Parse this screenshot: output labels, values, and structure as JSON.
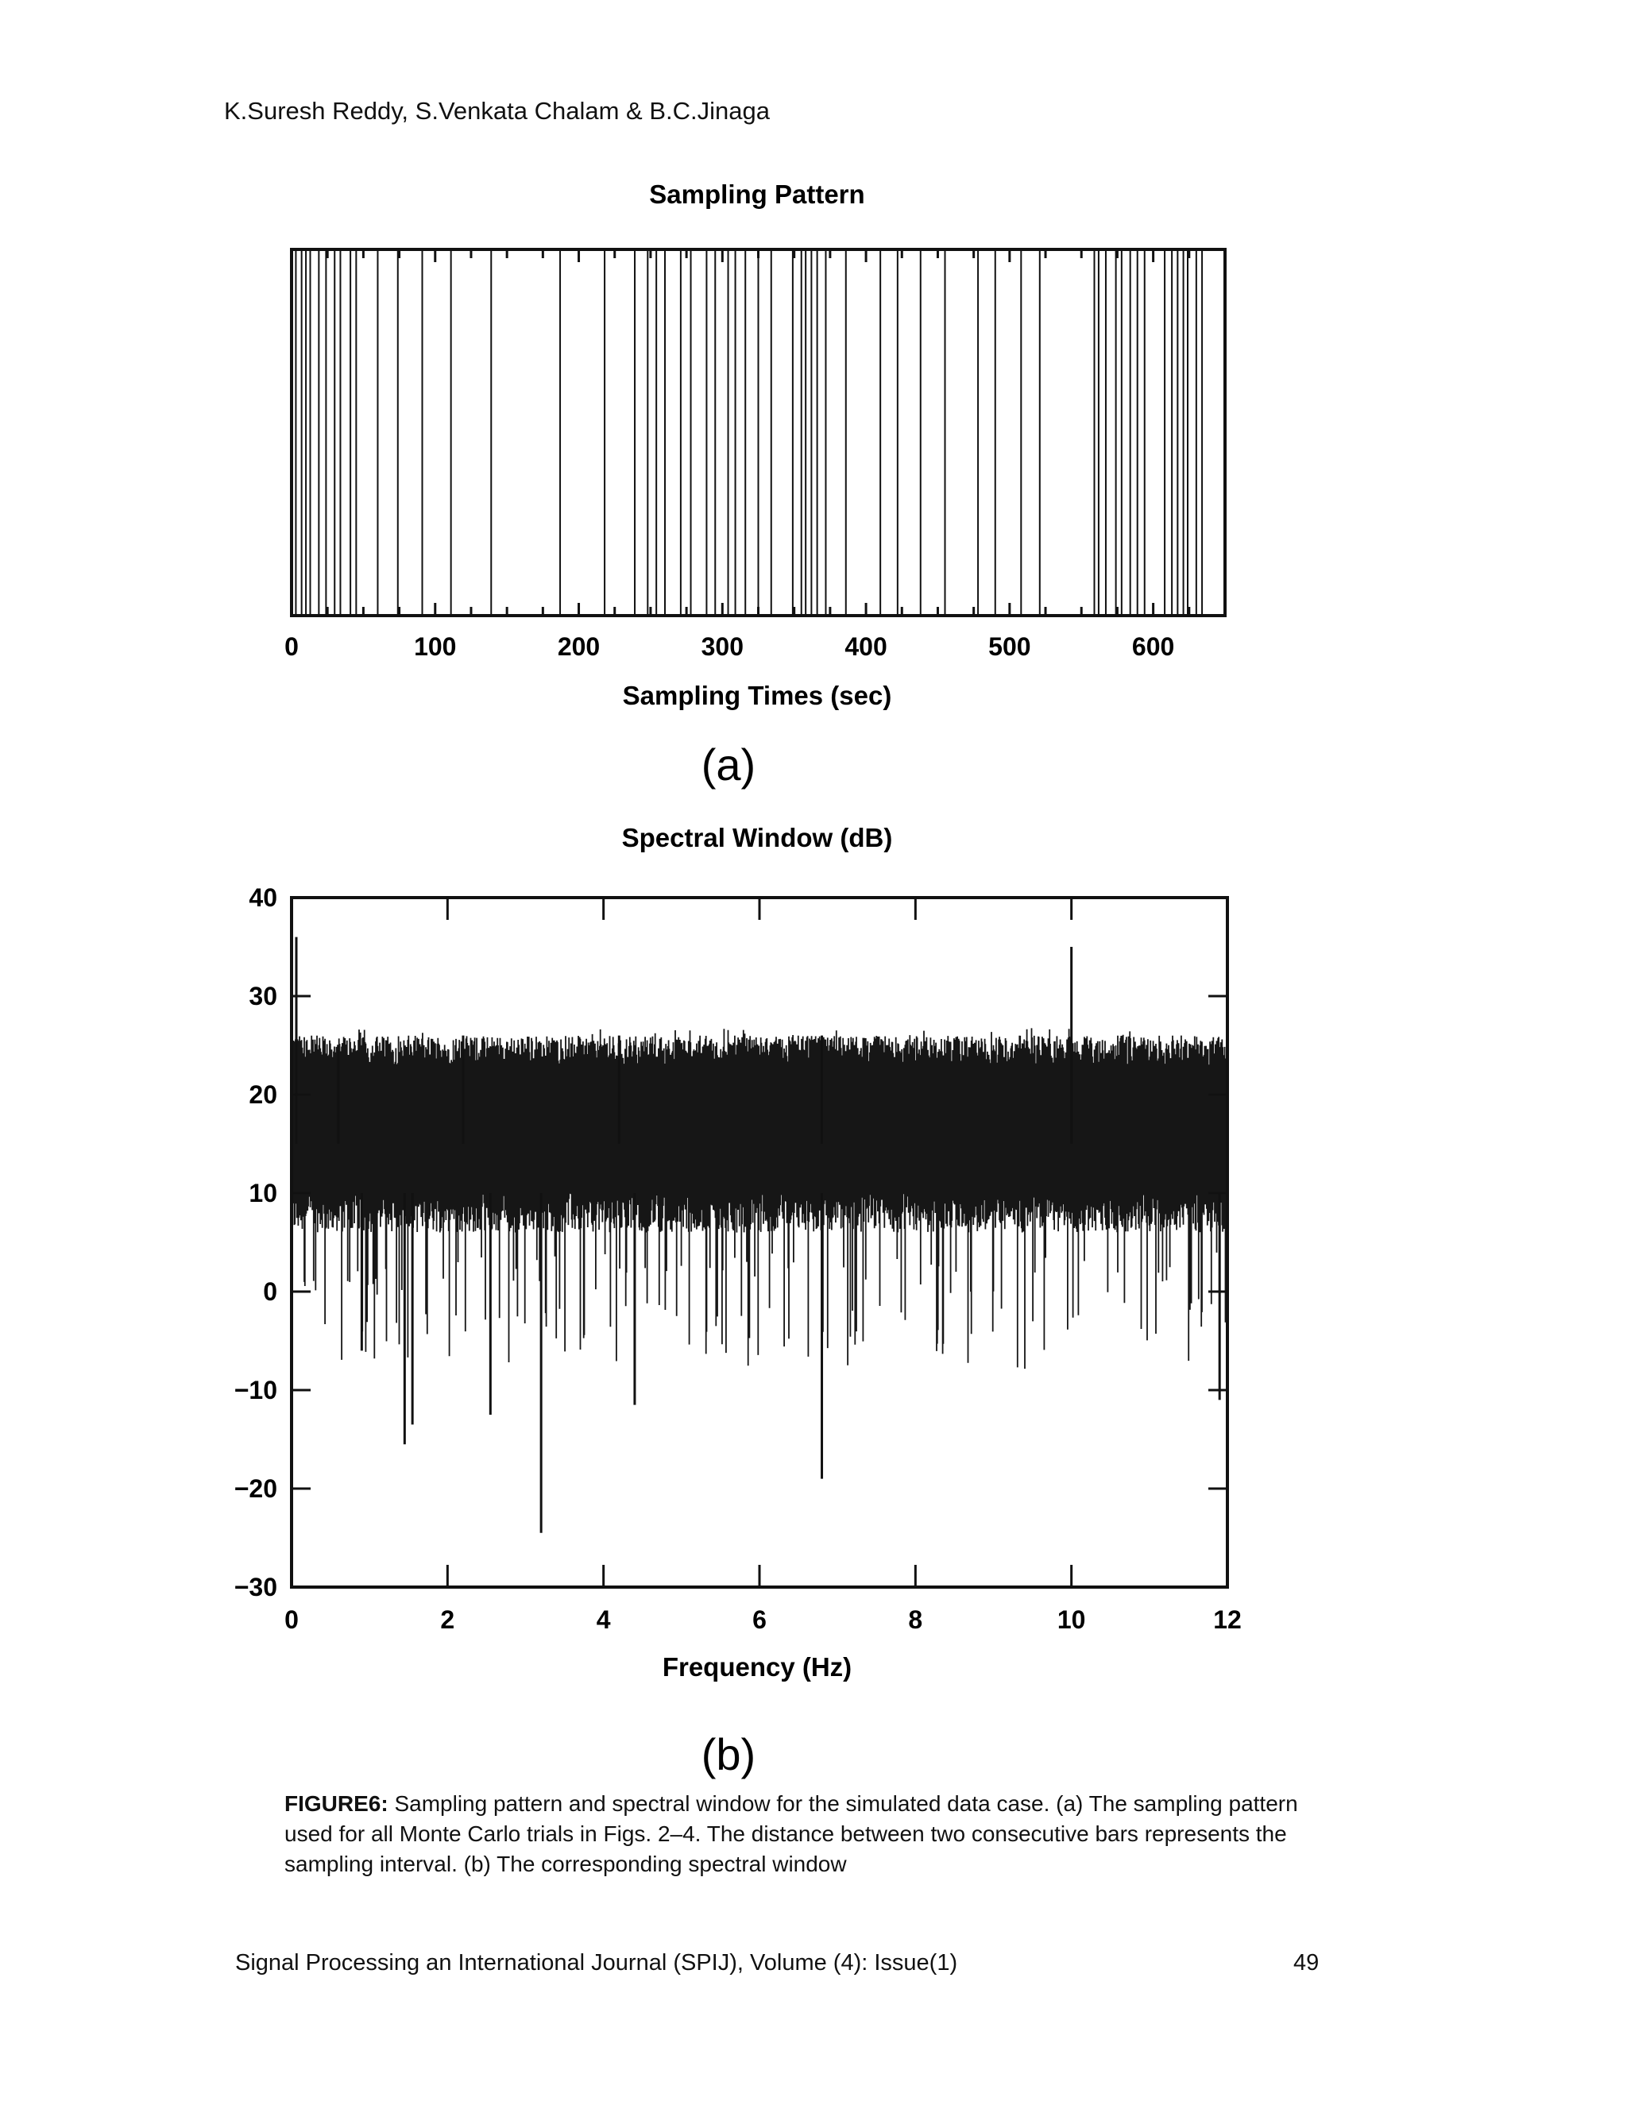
{
  "header": {
    "authors": "K.Suresh Reddy, S.Venkata Chalam & B.C.Jinaga"
  },
  "figure_a": {
    "panel_label": "(a)"
  },
  "figure_b": {
    "panel_label": "(b)"
  },
  "caption": {
    "label": "FIGURE6:",
    "text": " Sampling pattern and spectral window for the simulated data case. (a) The sampling pattern used for all Monte Carlo trials in Figs. 2–4. The distance between two consecutive bars represents the sampling interval. (b) The corresponding spectral window"
  },
  "footer": {
    "journal": "Signal Processing an International Journal (SPIJ), Volume (4): Issue(1)",
    "page_number": "49"
  },
  "chart_data": [
    {
      "type": "event-plot",
      "title": "Sampling Pattern",
      "xlabel": "Sampling Times (sec)",
      "ylabel": "",
      "xlim": [
        0,
        650
      ],
      "xticks": [
        0,
        100,
        200,
        300,
        400,
        500,
        600
      ],
      "sampling_times": [
        3,
        7,
        10,
        13,
        19,
        24,
        30,
        34,
        41,
        45,
        60,
        74,
        91,
        111,
        139,
        187,
        218,
        239,
        248,
        254,
        260,
        271,
        278,
        289,
        295,
        304,
        309,
        316,
        325,
        334,
        349,
        355,
        358,
        362,
        366,
        372,
        386,
        410,
        422,
        438,
        455,
        478,
        490,
        508,
        521,
        559,
        562,
        567,
        574,
        578,
        584,
        589,
        594,
        608,
        613,
        617,
        621,
        624,
        630,
        634
      ]
    },
    {
      "type": "line",
      "title": "Spectral Window (dB)",
      "xlabel": "Frequency (Hz)",
      "ylabel": "",
      "xlim": [
        0,
        12
      ],
      "ylim": [
        -30,
        40
      ],
      "xticks": [
        0,
        2,
        4,
        6,
        8,
        10,
        12
      ],
      "yticks": [
        -30,
        -20,
        -10,
        0,
        10,
        20,
        30,
        40
      ],
      "baseline_band_db": [
        8,
        24
      ],
      "peaks": [
        {
          "x": 0.0,
          "y": 36
        },
        {
          "x": 10.0,
          "y": 35
        },
        {
          "x": 0.6,
          "y": 25
        },
        {
          "x": 2.2,
          "y": 26
        },
        {
          "x": 4.2,
          "y": 26
        },
        {
          "x": 6.8,
          "y": 26
        }
      ],
      "dips": [
        {
          "x": 1.45,
          "y": -15.5
        },
        {
          "x": 1.55,
          "y": -13.5
        },
        {
          "x": 3.2,
          "y": -24.5
        },
        {
          "x": 6.8,
          "y": -19
        },
        {
          "x": 2.55,
          "y": -12.5
        },
        {
          "x": 4.4,
          "y": -11.5
        },
        {
          "x": 0.9,
          "y": -6
        },
        {
          "x": 11.9,
          "y": -11
        }
      ]
    }
  ]
}
